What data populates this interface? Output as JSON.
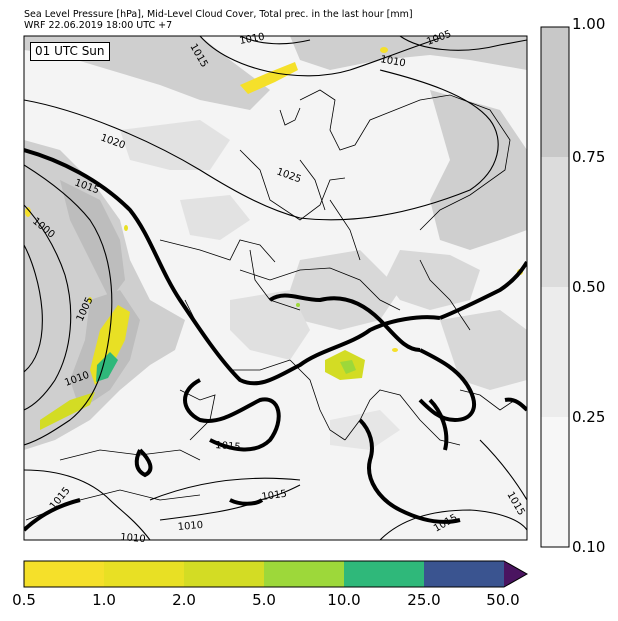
{
  "header": {
    "line1": "Sea Level Pressure [hPa], Mid-Level Cloud Cover, Total prec. in the last hour [mm]",
    "line2": "WRF 22.06.2019 18:00 UTC +7"
  },
  "map": {
    "time_stamp": "01 UTC Sun",
    "isobar_labels": [
      "1010",
      "1015",
      "1010",
      "1005",
      "1000",
      "1005",
      "1010",
      "1015",
      "1020",
      "1025",
      "1015",
      "1015",
      "1015",
      "1010",
      "1010",
      "1015",
      "1015",
      "1015",
      "1015"
    ]
  },
  "cloud_cover_colorbar": {
    "labels": [
      "1.00",
      "0.75",
      "0.50",
      "0.25",
      "0.10"
    ],
    "colors": [
      "#c8c8c8",
      "#dcdcdc",
      "#ececec",
      "#f7f7f7"
    ]
  },
  "precip_colorbar": {
    "labels": [
      "0.5",
      "1.0",
      "2.0",
      "5.0",
      "10.0",
      "25.0",
      "50.0"
    ],
    "colors": [
      "#f5e02a",
      "#e8e024",
      "#d3dc24",
      "#9dd83a",
      "#2fb87a",
      "#3a5490",
      "#4a1460"
    ]
  }
}
